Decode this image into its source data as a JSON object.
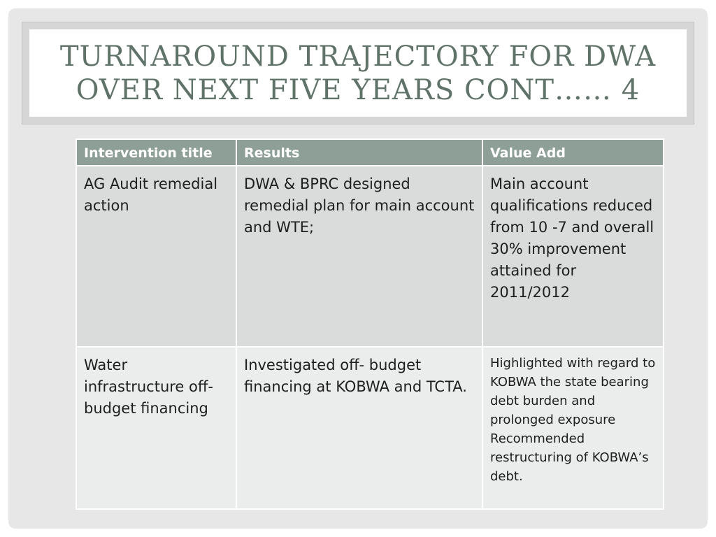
{
  "slide": {
    "title": "TURNAROUND TRAJECTORY FOR DWA\nOVER NEXT FIVE YEARS CONT…… 4"
  },
  "table": {
    "headers": [
      "Intervention title",
      "Results",
      "Value Add"
    ],
    "rows": [
      {
        "intervention": "AG Audit remedial action",
        "results": "DWA & BPRC designed remedial plan for main account and WTE;",
        "value_add": "Main account qualifications reduced from 10 -7 and overall 30% improvement attained for 2011/2012"
      },
      {
        "intervention": "Water infrastructure off-budget financing",
        "results": "Investigated off- budget financing at KOBWA and TCTA.",
        "value_add": "Highlighted with regard to KOBWA the state bearing debt burden  and prolonged exposure Recommended restructuring of KOBWA’s debt."
      }
    ]
  },
  "colors": {
    "title": "#607369",
    "header_bg": "#8e9f97",
    "row_odd_bg": "#d9dcdb",
    "row_even_bg": "#ebedec"
  }
}
